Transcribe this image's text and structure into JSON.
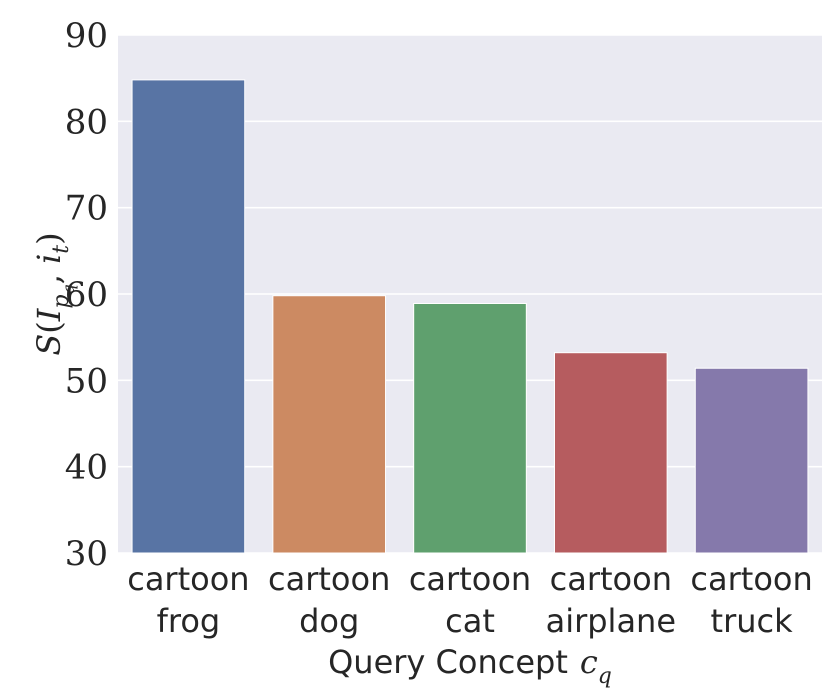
{
  "chart_data": {
    "type": "bar",
    "categories": [
      [
        "cartoon",
        "frog"
      ],
      [
        "cartoon",
        "dog"
      ],
      [
        "cartoon",
        "cat"
      ],
      [
        "cartoon",
        "airplane"
      ],
      [
        "cartoon",
        "truck"
      ]
    ],
    "values": [
      84.8,
      59.8,
      58.9,
      53.2,
      51.4
    ],
    "colors": [
      "#5874a4",
      "#cc8a62",
      "#5fa06e",
      "#b65c5f",
      "#8579ab"
    ],
    "xlabel": "Query Concept",
    "xlabel_symbol": "c",
    "xlabel_symbol_sub": "q",
    "ylabel": "S(I_{p_q}, i_t)",
    "ylabel_parts": {
      "S": "S",
      "I": "I",
      "p": "p",
      "q": "q",
      "i": "i",
      "t": "t"
    },
    "ylim": [
      30,
      90
    ],
    "yticks": [
      30,
      40,
      50,
      60,
      70,
      80,
      90
    ],
    "grid": true,
    "background": "#eaeaf2"
  }
}
